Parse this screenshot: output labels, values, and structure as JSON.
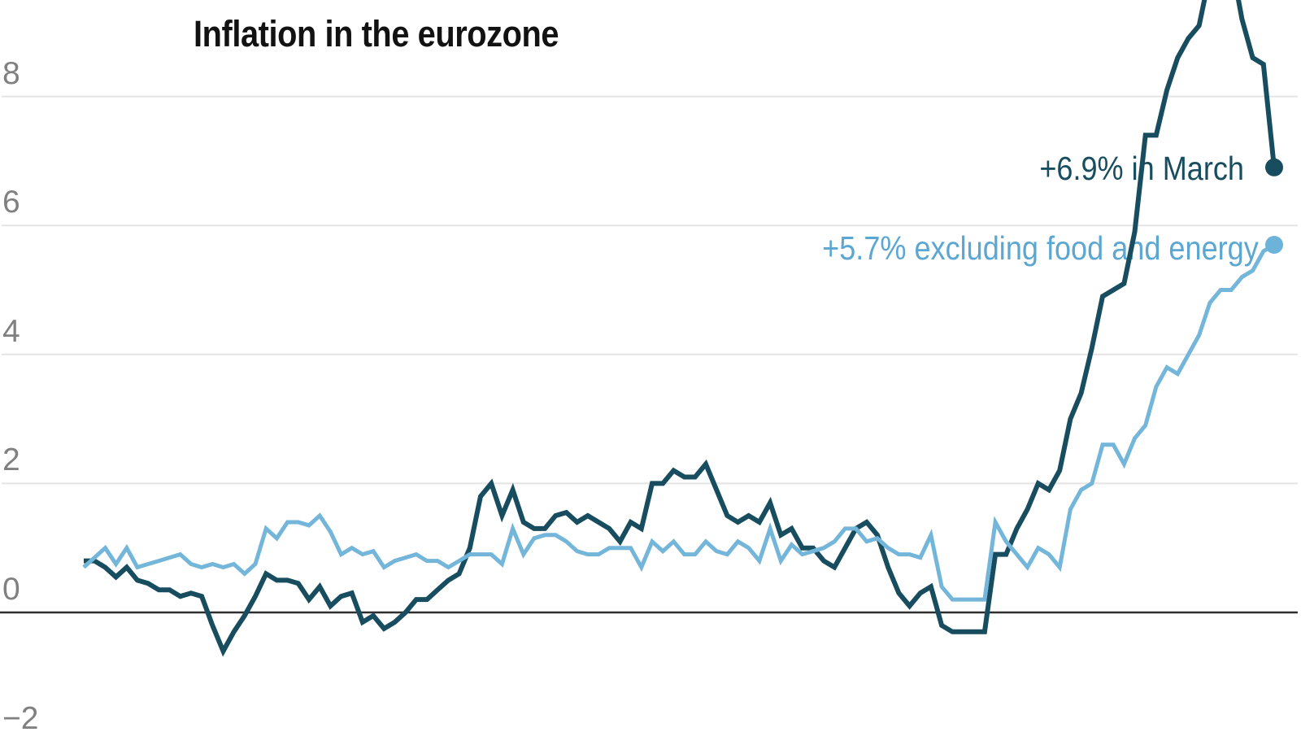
{
  "title": "Inflation in the eurozone",
  "y_axis": {
    "tick_labels": [
      "8",
      "6",
      "4",
      "2",
      "0",
      "−2"
    ]
  },
  "annotations": {
    "headline_label": "+6.9% in March",
    "core_label": "+5.7% excluding food and energy"
  },
  "colors": {
    "headline_line": "#174D5F",
    "headline_text": "#174D5F",
    "headline_dot": "#174D5F",
    "core_line": "#74B6DA",
    "core_text": "#5CA7D2",
    "core_dot": "#6DB2D8",
    "gridline": "#E4E4E4",
    "zero_line": "#2E2E2E",
    "tick_label": "#808080",
    "title_text": "#121212"
  },
  "chart_data": {
    "type": "line",
    "title": "Inflation in the eurozone",
    "x_range": {
      "start": "2013-12",
      "end": "2023-03",
      "frequency": "monthly"
    },
    "ylim": [
      -2,
      9.5
    ],
    "yticks": [
      8,
      6,
      4,
      2,
      0,
      -2
    ],
    "gridline_values": [
      8,
      6,
      4,
      2
    ],
    "zero_line": true,
    "grid": true,
    "legend_position": "direct-labels-right",
    "series": [
      {
        "name": "overall-inflation",
        "end_label": "+6.9% in March",
        "end_value": 6.9,
        "color": "#174D5F",
        "dot_color": "#174D5F",
        "values": [
          0.8,
          0.8,
          0.7,
          0.55,
          0.7,
          0.5,
          0.45,
          0.35,
          0.35,
          0.25,
          0.3,
          0.25,
          -0.2,
          -0.6,
          -0.3,
          -0.05,
          0.25,
          0.6,
          0.5,
          0.5,
          0.45,
          0.2,
          0.4,
          0.1,
          0.25,
          0.3,
          -0.15,
          -0.05,
          -0.25,
          -0.15,
          0.0,
          0.2,
          0.2,
          0.35,
          0.5,
          0.6,
          1.0,
          1.8,
          2.0,
          1.5,
          1.9,
          1.4,
          1.3,
          1.3,
          1.5,
          1.55,
          1.4,
          1.5,
          1.4,
          1.3,
          1.1,
          1.4,
          1.3,
          2.0,
          2.0,
          2.2,
          2.1,
          2.1,
          2.3,
          1.9,
          1.5,
          1.4,
          1.5,
          1.4,
          1.7,
          1.2,
          1.3,
          1.0,
          1.0,
          0.8,
          0.7,
          1.0,
          1.3,
          1.4,
          1.2,
          0.7,
          0.3,
          0.1,
          0.3,
          0.4,
          -0.2,
          -0.3,
          -0.3,
          -0.3,
          -0.3,
          0.9,
          0.9,
          1.3,
          1.6,
          2.0,
          1.9,
          2.2,
          3.0,
          3.4,
          4.1,
          4.9,
          5.0,
          5.1,
          5.9,
          7.4,
          7.4,
          8.1,
          8.6,
          8.9,
          9.1,
          9.9,
          10.6,
          10.1,
          9.2,
          8.6,
          8.5,
          6.9
        ]
      },
      {
        "name": "excluding-food-and-energy",
        "end_label": "+5.7% excluding food and energy",
        "end_value": 5.7,
        "color": "#74B6DA",
        "dot_color": "#6DB2D8",
        "values": [
          0.7,
          0.85,
          1.0,
          0.75,
          1.0,
          0.7,
          0.75,
          0.8,
          0.85,
          0.9,
          0.75,
          0.7,
          0.75,
          0.7,
          0.75,
          0.6,
          0.75,
          1.3,
          1.15,
          1.4,
          1.4,
          1.35,
          1.5,
          1.25,
          0.9,
          1.0,
          0.9,
          0.95,
          0.7,
          0.8,
          0.85,
          0.9,
          0.8,
          0.8,
          0.7,
          0.8,
          0.9,
          0.9,
          0.9,
          0.75,
          1.3,
          0.9,
          1.15,
          1.2,
          1.2,
          1.1,
          0.95,
          0.9,
          0.9,
          1.0,
          1.0,
          1.0,
          0.7,
          1.1,
          0.95,
          1.1,
          0.9,
          0.9,
          1.1,
          0.95,
          0.9,
          1.1,
          1.0,
          0.8,
          1.3,
          0.8,
          1.05,
          0.9,
          0.95,
          1.0,
          1.1,
          1.3,
          1.3,
          1.1,
          1.15,
          1.0,
          0.9,
          0.9,
          0.85,
          1.2,
          0.4,
          0.2,
          0.2,
          0.2,
          0.2,
          1.4,
          1.1,
          0.9,
          0.7,
          1.0,
          0.9,
          0.7,
          1.6,
          1.9,
          2.0,
          2.6,
          2.6,
          2.3,
          2.7,
          2.9,
          3.5,
          3.8,
          3.7,
          4.0,
          4.3,
          4.8,
          5.0,
          5.0,
          5.2,
          5.3,
          5.6,
          5.7
        ]
      }
    ]
  }
}
